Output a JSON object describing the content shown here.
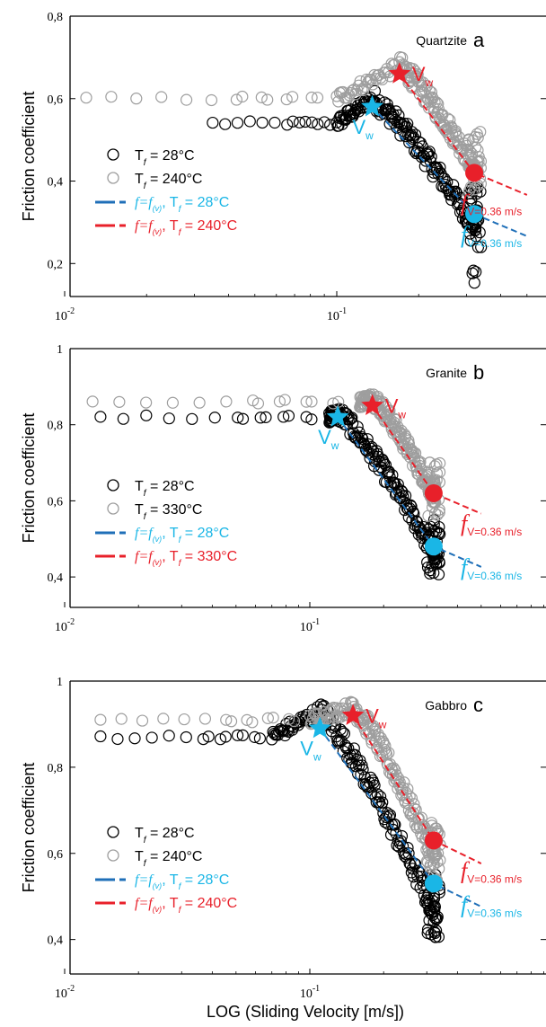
{
  "xlabel": "LOG (Sliding Velocity [m/s])",
  "colors": {
    "black": "#000000",
    "gray": "#9e9e9e",
    "red": "#e8202a",
    "cyan": "#1ab6e6",
    "blue": "#1f6fb8"
  },
  "chart_data": [
    {
      "type": "scatter",
      "panel": "a",
      "rock": "Quartzite",
      "xscale": "log",
      "xlim": [
        0.01,
        0.5
      ],
      "ylim": [
        0.12,
        0.8
      ],
      "xticks": [
        "10^-2",
        "10^-1"
      ],
      "yticks": [
        "0,2",
        "0,4",
        "0,6",
        "0,8"
      ],
      "ylabel": "Friction coefficient",
      "vw_label": "V",
      "vw_sub": "w",
      "legend": [
        {
          "T": "T",
          "sub": "f",
          "eq": " = 28°C"
        },
        {
          "T": "T",
          "sub": "f",
          "eq": " = 240°C"
        },
        {
          "f": "f=f",
          "fsub": "(v)",
          "T": ", T",
          "Tsub": "f",
          "eq": " = 28°C"
        },
        {
          "f": "f=f",
          "fsub": "(v)",
          "T": ", T",
          "Tsub": "f",
          "eq": " = 240°C"
        }
      ],
      "fv_label_red": {
        "f": "f",
        "sub": "V=0.36 m/s"
      },
      "fv_label_cyan": {
        "f": "f",
        "sub": "V=0.36 m/s"
      },
      "series": [
        {
          "name": "T_f = 28°C",
          "color": "black",
          "y_plateau": 0.54,
          "plateau_start": 0.035,
          "transition_end": 0.1,
          "peak": 0.6,
          "end_value": 0.28,
          "low_tail": 0.15,
          "vw": 0.135,
          "vw_mu": 0.58,
          "fv_point": 0.32
        },
        {
          "name": "T_f = 240°C",
          "color": "gray",
          "y_plateau": 0.6,
          "plateau_start": 0.012,
          "transition_end": 0.1,
          "peak": 0.68,
          "end_value": 0.42,
          "low_tail": 0.4,
          "vw": 0.17,
          "vw_mu": 0.66,
          "fv_point": 0.42
        }
      ]
    },
    {
      "type": "scatter",
      "panel": "b",
      "rock": "Granite",
      "xscale": "log",
      "xlim": [
        0.01,
        0.5
      ],
      "ylim": [
        0.32,
        1.0
      ],
      "xticks": [
        "10^-2",
        "10^-1"
      ],
      "yticks": [
        "0,4",
        "0,6",
        "0,8",
        "1"
      ],
      "ylabel": "Friction coefficient",
      "vw_label": "V",
      "vw_sub": "w",
      "legend": [
        {
          "T": "T",
          "sub": "f",
          "eq": " = 28°C"
        },
        {
          "T": "T",
          "sub": "f",
          "eq": " = 330°C"
        },
        {
          "f": "f=f",
          "fsub": "(v)",
          "T": ", T",
          "Tsub": "f",
          "eq": " = 28°C"
        },
        {
          "f": "f=f",
          "fsub": "(v)",
          "T": ", T",
          "Tsub": "f",
          "eq": " = 330°C"
        }
      ],
      "fv_label_red": {
        "f": "f",
        "sub": "V=0.36 m/s"
      },
      "fv_label_cyan": {
        "f": "f",
        "sub": "V=0.36 m/s"
      },
      "series": [
        {
          "name": "T_f = 28°C",
          "color": "black",
          "y_plateau": 0.82,
          "plateau_start": 0.014,
          "transition_end": 0.12,
          "peak": 0.83,
          "end_value": 0.45,
          "low_tail": 0.44,
          "vw": 0.13,
          "vw_mu": 0.82,
          "fv_point": 0.48
        },
        {
          "name": "T_f = 330°C",
          "color": "gray",
          "y_plateau": 0.86,
          "plateau_start": 0.013,
          "transition_end": 0.16,
          "peak": 0.87,
          "end_value": 0.6,
          "low_tail": 0.58,
          "vw": 0.18,
          "vw_mu": 0.85,
          "fv_point": 0.62
        }
      ]
    },
    {
      "type": "scatter",
      "panel": "c",
      "rock": "Gabbro",
      "xscale": "log",
      "xlim": [
        0.01,
        0.5
      ],
      "ylim": [
        0.32,
        1.0
      ],
      "xticks": [
        "10^-2",
        "10^-1"
      ],
      "yticks": [
        "0,4",
        "0,6",
        "0,8",
        "1"
      ],
      "ylabel": "Friction coefficient",
      "vw_label": "V",
      "vw_sub": "w",
      "legend": [
        {
          "T": "T",
          "sub": "f",
          "eq": " = 28°C"
        },
        {
          "T": "T",
          "sub": "f",
          "eq": " = 240°C"
        },
        {
          "f": "f=f",
          "fsub": "(v)",
          "T": ", T",
          "Tsub": "f",
          "eq": " = 28°C"
        },
        {
          "f": "f=f",
          "fsub": "(v)",
          "T": ", T",
          "Tsub": "f",
          "eq": " = 240°C"
        }
      ],
      "fv_label_red": {
        "f": "f",
        "sub": "V=0.36 m/s"
      },
      "fv_label_cyan": {
        "f": "f",
        "sub": "V=0.36 m/s"
      },
      "series": [
        {
          "name": "T_f = 28°C",
          "color": "black",
          "y_plateau": 0.87,
          "plateau_start": 0.014,
          "transition_end": 0.07,
          "peak": 0.93,
          "end_value": 0.45,
          "low_tail": 0.44,
          "vw": 0.11,
          "vw_mu": 0.89,
          "fv_point": 0.53
        },
        {
          "name": "T_f = 240°C",
          "color": "gray",
          "y_plateau": 0.91,
          "plateau_start": 0.014,
          "transition_end": 0.1,
          "peak": 0.94,
          "end_value": 0.58,
          "low_tail": 0.56,
          "vw": 0.15,
          "vw_mu": 0.92,
          "fv_point": 0.63
        }
      ]
    }
  ]
}
